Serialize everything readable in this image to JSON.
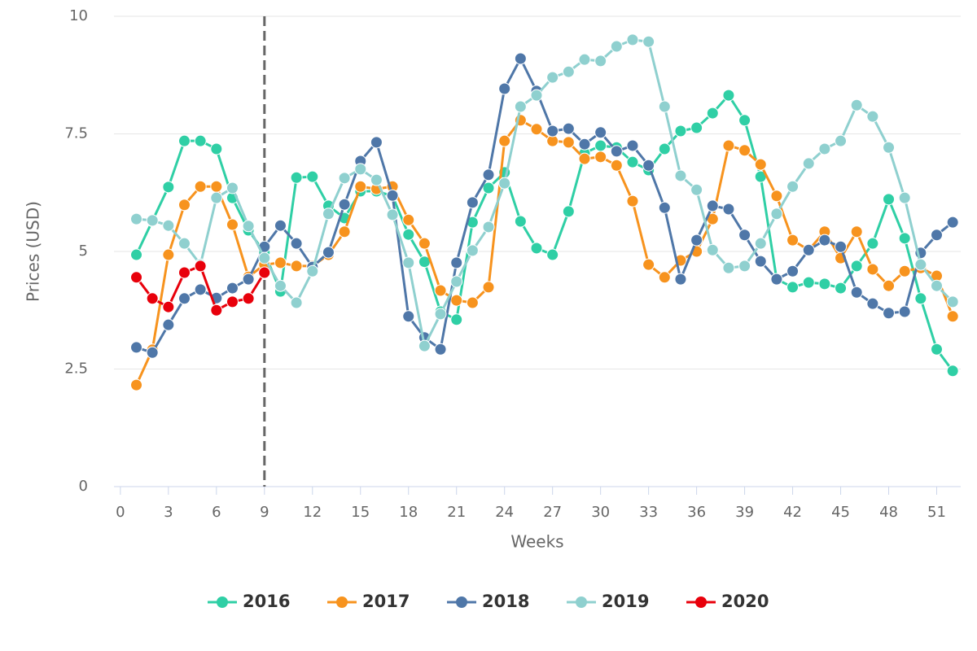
{
  "chart_data": {
    "type": "line",
    "x_label": "Weeks",
    "y_label": "Prices (USD)",
    "x": [
      1,
      2,
      3,
      4,
      5,
      6,
      7,
      8,
      9,
      10,
      11,
      12,
      13,
      14,
      15,
      16,
      17,
      18,
      19,
      20,
      21,
      22,
      23,
      24,
      25,
      26,
      27,
      28,
      29,
      30,
      31,
      32,
      33,
      34,
      35,
      36,
      37,
      38,
      39,
      40,
      41,
      42,
      43,
      44,
      45,
      46,
      47,
      48,
      49,
      50,
      51,
      52
    ],
    "series": [
      {
        "name": "2016",
        "color": "#2fcfa5",
        "values": [
          4.93,
          5.65,
          6.37,
          7.35,
          7.35,
          7.18,
          6.14,
          5.45,
          4.98,
          4.15,
          6.57,
          6.59,
          5.97,
          5.71,
          6.28,
          6.28,
          6.18,
          5.36,
          4.78,
          3.72,
          3.55,
          5.62,
          6.35,
          6.68,
          5.64,
          5.07,
          4.93,
          5.85,
          7.09,
          7.25,
          7.21,
          6.9,
          6.73,
          7.18,
          7.56,
          7.63,
          7.94,
          8.32,
          7.79,
          6.59,
          4.41,
          4.24,
          4.34,
          4.31,
          4.22,
          4.69,
          5.17,
          6.11,
          5.28,
          4.0,
          2.92,
          2.46
        ]
      },
      {
        "name": "2017",
        "color": "#f7931e",
        "values": [
          2.16,
          2.91,
          4.93,
          5.99,
          6.38,
          6.38,
          5.57,
          4.46,
          4.72,
          4.76,
          4.69,
          4.69,
          4.93,
          5.42,
          6.38,
          6.33,
          6.38,
          5.67,
          5.17,
          4.17,
          3.96,
          3.91,
          4.24,
          7.35,
          7.79,
          7.6,
          7.35,
          7.32,
          6.97,
          7.01,
          6.83,
          6.07,
          4.72,
          4.45,
          4.81,
          5.0,
          5.69,
          7.25,
          7.15,
          6.85,
          6.18,
          5.24,
          5.03,
          5.42,
          4.86,
          5.42,
          4.62,
          4.27,
          4.58,
          4.65,
          4.48,
          3.62
        ]
      },
      {
        "name": "2018",
        "color": "#4f77a8",
        "values": [
          2.96,
          2.85,
          3.44,
          4.0,
          4.19,
          4.01,
          4.22,
          4.41,
          5.1,
          5.55,
          5.17,
          4.67,
          4.98,
          6.0,
          6.92,
          7.32,
          6.19,
          3.62,
          3.17,
          2.92,
          4.76,
          6.04,
          6.63,
          8.46,
          9.1,
          8.41,
          7.56,
          7.61,
          7.28,
          7.53,
          7.13,
          7.25,
          6.83,
          5.93,
          4.41,
          5.24,
          5.97,
          5.9,
          5.35,
          4.79,
          4.41,
          4.58,
          5.03,
          5.24,
          5.1,
          4.13,
          3.89,
          3.69,
          3.72,
          4.97,
          5.35,
          5.62
        ]
      },
      {
        "name": "2019",
        "color": "#8fd0cf",
        "values": [
          5.69,
          5.66,
          5.55,
          5.17,
          4.72,
          6.14,
          6.35,
          5.54,
          4.86,
          4.27,
          3.91,
          4.58,
          5.8,
          6.56,
          6.75,
          6.52,
          5.78,
          4.76,
          2.99,
          3.67,
          4.36,
          5.02,
          5.52,
          6.45,
          8.08,
          8.32,
          8.7,
          8.82,
          9.08,
          9.05,
          9.36,
          9.5,
          9.46,
          8.08,
          6.61,
          6.31,
          5.03,
          4.65,
          4.69,
          5.17,
          5.8,
          6.38,
          6.87,
          7.18,
          7.35,
          8.11,
          7.87,
          7.21,
          6.14,
          4.72,
          4.27,
          3.93
        ]
      },
      {
        "name": "2020",
        "color": "#e8000b",
        "values": [
          4.45,
          4.0,
          3.82,
          4.55,
          4.69,
          3.75,
          3.93,
          4.0,
          4.55,
          null,
          null,
          null,
          null,
          null,
          null,
          null,
          null,
          null,
          null,
          null,
          null,
          null,
          null,
          null,
          null,
          null,
          null,
          null,
          null,
          null,
          null,
          null,
          null,
          null,
          null,
          null,
          null,
          null,
          null,
          null,
          null,
          null,
          null,
          null,
          null,
          null,
          null,
          null,
          null,
          null,
          null,
          null
        ]
      }
    ],
    "xlim": [
      -0.4,
      52.5
    ],
    "xticks": [
      0,
      3,
      6,
      9,
      12,
      15,
      18,
      21,
      24,
      27,
      30,
      33,
      36,
      39,
      42,
      45,
      48,
      51
    ],
    "ylim": [
      0,
      10
    ],
    "yticks": [
      0,
      2.5,
      5,
      7.5,
      10
    ],
    "vline": 9,
    "grid": true,
    "legend": "bottom"
  }
}
